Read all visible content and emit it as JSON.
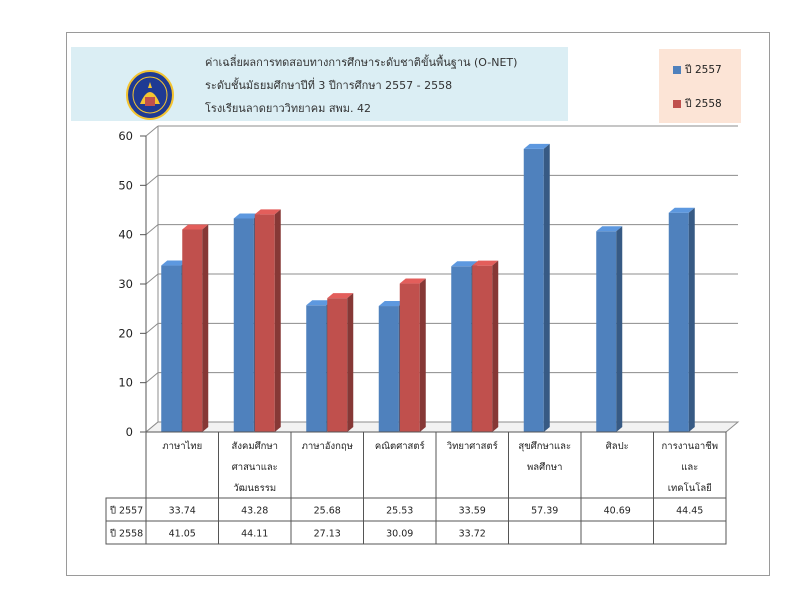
{
  "chart_data": {
    "type": "bar",
    "title_lines": [
      "ค่าเฉลี่ยผลการทดสอบทางการศึกษาระดับชาติขั้นพื้นฐาน (O-NET)",
      "ระดับชั้นมัธยมศึกษาปีที่ 3 ปีการศึกษา 2557 - 2558",
      "โรงเรียนลาดยาววิทยาคม สพม. 42"
    ],
    "categories": [
      [
        "ภาษาไทย"
      ],
      [
        "สังคมศึกษา",
        "ศาสนาและ",
        "วัฒนธรรม"
      ],
      [
        "ภาษาอังกฤษ"
      ],
      [
        "คณิตศาสตร์"
      ],
      [
        "วิทยาศาสตร์"
      ],
      [
        "สุขศึกษาและ",
        "พลศึกษา"
      ],
      [
        "ศิลปะ"
      ],
      [
        "การงานอาชีพ",
        "และ",
        "เทคโนโลยี"
      ]
    ],
    "series": [
      {
        "name": "ปี 2557",
        "color": "#4f81bd",
        "values": [
          33.74,
          43.28,
          25.68,
          25.53,
          33.59,
          57.39,
          40.69,
          44.45
        ],
        "labels": [
          "33.74",
          "43.28",
          "25.68",
          "25.53",
          "33.59",
          "57.39",
          "40.69",
          "44.45"
        ]
      },
      {
        "name": "ปี 2558",
        "color": "#c0504d",
        "values": [
          41.05,
          44.11,
          27.13,
          30.09,
          33.72,
          null,
          null,
          null
        ],
        "labels": [
          "41.05",
          "44.11",
          "27.13",
          "30.09",
          "33.72",
          "",
          "",
          ""
        ]
      }
    ],
    "ylim": [
      0,
      60
    ],
    "yticks": [
      "0",
      "10",
      "20",
      "30",
      "40",
      "50",
      "60"
    ],
    "grid": true,
    "legend_position": "top-right",
    "table_below": true
  }
}
